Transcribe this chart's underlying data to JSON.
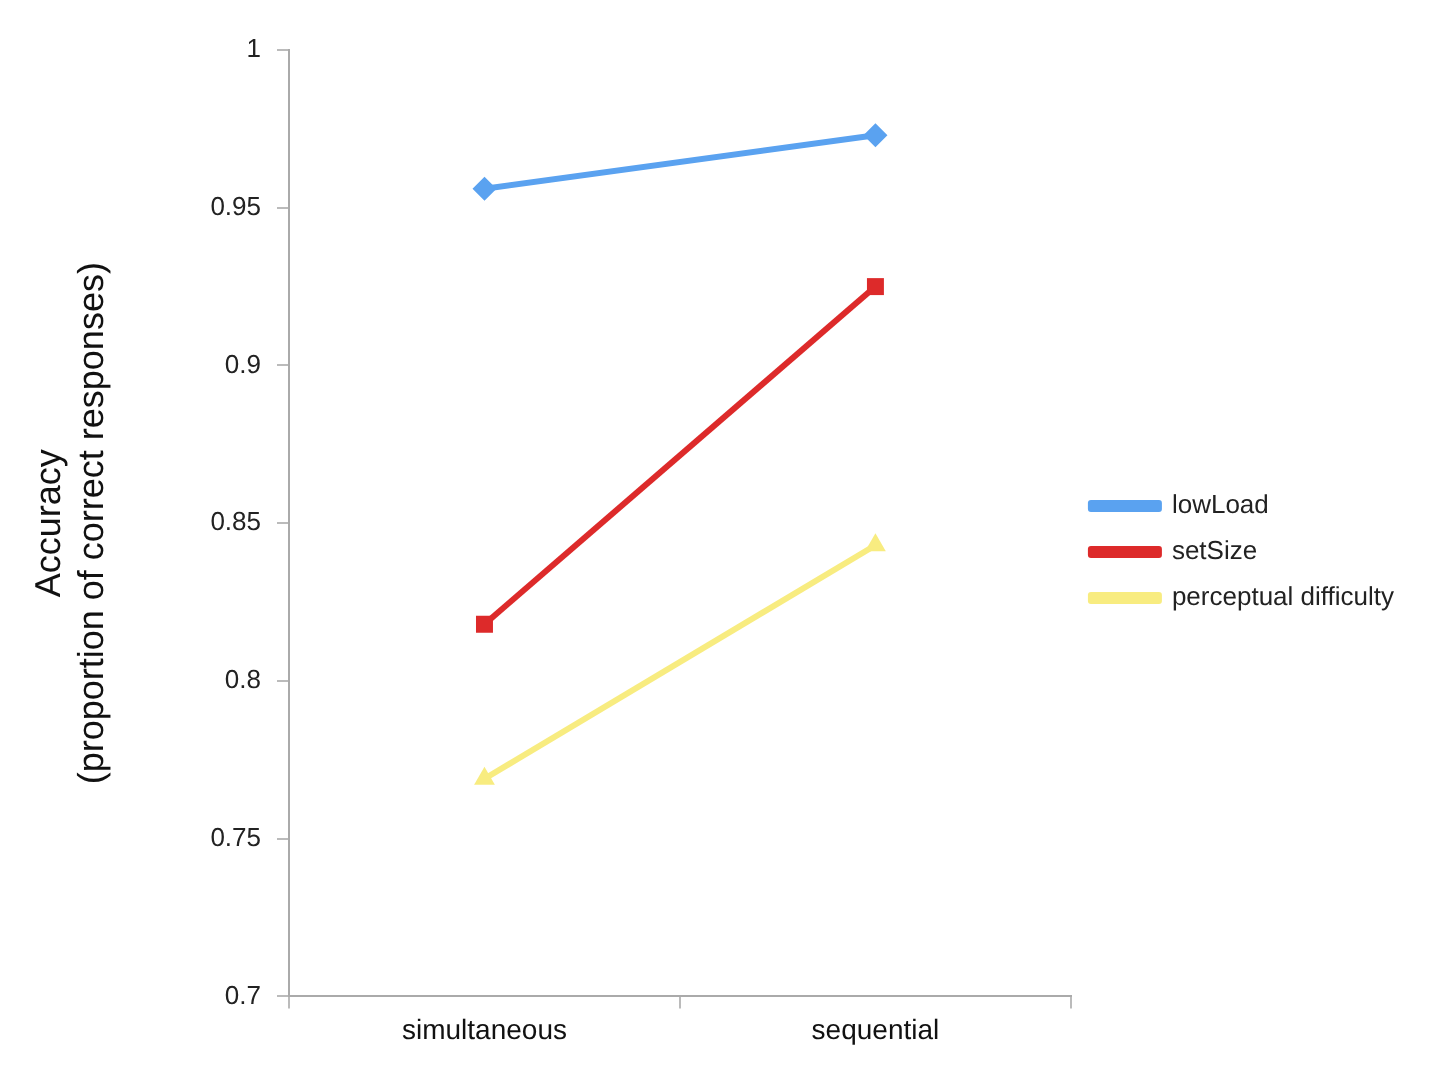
{
  "chart_data": {
    "type": "line",
    "ylabel": "Accuracy\n(proportion of correct responses)",
    "categories": [
      "simultaneous",
      "sequential"
    ],
    "series": [
      {
        "name": "lowLoad",
        "color": "#5aa2f0",
        "marker": "diamond",
        "values": [
          0.956,
          0.973
        ]
      },
      {
        "name": "setSize",
        "color": "#dd2a2a",
        "marker": "square",
        "values": [
          0.818,
          0.925
        ]
      },
      {
        "name": "perceptual difficulty",
        "color": "#f8ec80",
        "marker": "triangle",
        "values": [
          0.769,
          0.843
        ]
      }
    ],
    "ylim": [
      0.7,
      1
    ],
    "yticks": [
      0.7,
      0.75,
      0.8,
      0.85,
      0.9,
      0.95,
      1
    ],
    "grid": false,
    "legend": "right"
  }
}
